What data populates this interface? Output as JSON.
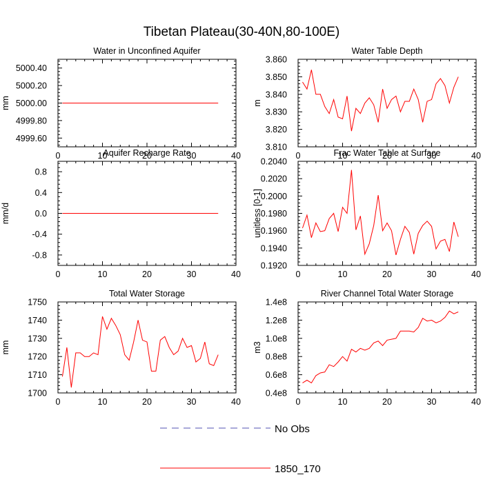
{
  "figure": {
    "title": "Tibetan Plateau(30-40N,80-100E)",
    "line_color": "#ff0000",
    "obs_color": "#5050b0"
  },
  "legend": {
    "position": "bottom-center",
    "entries": [
      {
        "label": "No Obs",
        "style": "dashed",
        "color": "#5050b0"
      },
      {
        "label": "1850_170",
        "style": "solid",
        "color": "#ff0000"
      }
    ]
  },
  "chart_data": [
    {
      "type": "line",
      "title": "Water in Unconfined Aquifer",
      "ylabel": "mm",
      "xlim": [
        0,
        40
      ],
      "xticks": [
        0,
        10,
        20,
        30,
        40
      ],
      "xtick_labels": [
        "0",
        "10",
        "20",
        "30",
        "40"
      ],
      "ylim": [
        4999.5,
        5000.5
      ],
      "yticks": [
        4999.6,
        4999.8,
        5000.0,
        5000.2,
        5000.4
      ],
      "ytick_labels": [
        "4999.60",
        "4999.80",
        "5000.00",
        "5000.20",
        "5000.40"
      ],
      "x": [
        1,
        2,
        3,
        4,
        5,
        6,
        7,
        8,
        9,
        10,
        11,
        12,
        13,
        14,
        15,
        16,
        17,
        18,
        19,
        20,
        21,
        22,
        23,
        24,
        25,
        26,
        27,
        28,
        29,
        30,
        31,
        32,
        33,
        34,
        35,
        36
      ],
      "y": [
        5000,
        5000,
        5000,
        5000,
        5000,
        5000,
        5000,
        5000,
        5000,
        5000,
        5000,
        5000,
        5000,
        5000,
        5000,
        5000,
        5000,
        5000,
        5000,
        5000,
        5000,
        5000,
        5000,
        5000,
        5000,
        5000,
        5000,
        5000,
        5000,
        5000,
        5000,
        5000,
        5000,
        5000,
        5000,
        5000
      ]
    },
    {
      "type": "line",
      "title": "Water Table Depth",
      "ylabel": "m",
      "xlim": [
        0,
        40
      ],
      "xticks": [
        0,
        10,
        20,
        30,
        40
      ],
      "xtick_labels": [
        "0",
        "10",
        "20",
        "30",
        "40"
      ],
      "ylim": [
        3.81,
        3.86
      ],
      "yticks": [
        3.81,
        3.82,
        3.83,
        3.84,
        3.85,
        3.86
      ],
      "ytick_labels": [
        "3.810",
        "3.820",
        "3.830",
        "3.840",
        "3.850",
        "3.860"
      ],
      "x": [
        1,
        2,
        3,
        4,
        5,
        6,
        7,
        8,
        9,
        10,
        11,
        12,
        13,
        14,
        15,
        16,
        17,
        18,
        19,
        20,
        21,
        22,
        23,
        24,
        25,
        26,
        27,
        28,
        29,
        30,
        31,
        32,
        33,
        34,
        35,
        36
      ],
      "y": [
        3.847,
        3.843,
        3.854,
        3.84,
        3.84,
        3.833,
        3.829,
        3.837,
        3.827,
        3.826,
        3.839,
        3.819,
        3.832,
        3.829,
        3.835,
        3.838,
        3.834,
        3.824,
        3.843,
        3.832,
        3.837,
        3.839,
        3.83,
        3.836,
        3.836,
        3.843,
        3.837,
        3.824,
        3.836,
        3.837,
        3.846,
        3.849,
        3.845,
        3.835,
        3.844,
        3.85
      ]
    },
    {
      "type": "line",
      "title": "Aquifer Recharge Rate",
      "ylabel": "mm/d",
      "xlim": [
        0,
        40
      ],
      "xticks": [
        0,
        10,
        20,
        30,
        40
      ],
      "xtick_labels": [
        "0",
        "10",
        "20",
        "30",
        "40"
      ],
      "ylim": [
        -1.0,
        1.0
      ],
      "yticks": [
        -0.8,
        -0.4,
        0.0,
        0.4,
        0.8
      ],
      "ytick_labels": [
        "-0.8",
        "-0.4",
        "0.0",
        "0.4",
        "0.8"
      ],
      "x": [
        1,
        2,
        3,
        4,
        5,
        6,
        7,
        8,
        9,
        10,
        11,
        12,
        13,
        14,
        15,
        16,
        17,
        18,
        19,
        20,
        21,
        22,
        23,
        24,
        25,
        26,
        27,
        28,
        29,
        30,
        31,
        32,
        33,
        34,
        35,
        36
      ],
      "y": [
        0,
        0,
        0,
        0,
        0,
        0,
        0,
        0,
        0,
        0,
        0,
        0,
        0,
        0,
        0,
        0,
        0,
        0,
        0,
        0,
        0,
        0,
        0,
        0,
        0,
        0,
        0,
        0,
        0,
        0,
        0,
        0,
        0,
        0,
        0,
        0
      ]
    },
    {
      "type": "line",
      "title": "Frac Water Table at Surface",
      "ylabel": "unitless [0-1]",
      "xlim": [
        0,
        40
      ],
      "xticks": [
        0,
        10,
        20,
        30,
        40
      ],
      "xtick_labels": [
        "0",
        "10",
        "20",
        "30",
        "40"
      ],
      "ylim": [
        0.192,
        0.204
      ],
      "yticks": [
        0.192,
        0.194,
        0.196,
        0.198,
        0.2,
        0.202,
        0.204
      ],
      "ytick_labels": [
        "0.1920",
        "0.1940",
        "0.1960",
        "0.1980",
        "0.2000",
        "0.2020",
        "0.2040"
      ],
      "x": [
        1,
        2,
        3,
        4,
        5,
        6,
        7,
        8,
        9,
        10,
        11,
        12,
        13,
        14,
        15,
        16,
        17,
        18,
        19,
        20,
        21,
        22,
        23,
        24,
        25,
        26,
        27,
        28,
        29,
        30,
        31,
        32,
        33,
        34,
        35,
        36
      ],
      "y": [
        0.1963,
        0.1978,
        0.1952,
        0.1969,
        0.1959,
        0.196,
        0.1974,
        0.198,
        0.1959,
        0.1987,
        0.198,
        0.203,
        0.1961,
        0.1977,
        0.1933,
        0.1945,
        0.1966,
        0.2001,
        0.196,
        0.1969,
        0.196,
        0.1932,
        0.195,
        0.1965,
        0.1958,
        0.1933,
        0.1957,
        0.1966,
        0.1971,
        0.1965,
        0.1939,
        0.1948,
        0.195,
        0.1936,
        0.197,
        0.1953
      ]
    },
    {
      "type": "line",
      "title": "Total Water Storage",
      "ylabel": "mm",
      "xlim": [
        0,
        40
      ],
      "xticks": [
        0,
        10,
        20,
        30,
        40
      ],
      "xtick_labels": [
        "0",
        "10",
        "20",
        "30",
        "40"
      ],
      "ylim": [
        1700,
        1750
      ],
      "yticks": [
        1700,
        1710,
        1720,
        1730,
        1740,
        1750
      ],
      "ytick_labels": [
        "1700",
        "1710",
        "1720",
        "1730",
        "1740",
        "1750"
      ],
      "x": [
        1,
        2,
        3,
        4,
        5,
        6,
        7,
        8,
        9,
        10,
        11,
        12,
        13,
        14,
        15,
        16,
        17,
        18,
        19,
        20,
        21,
        22,
        23,
        24,
        25,
        26,
        27,
        28,
        29,
        30,
        31,
        32,
        33,
        34,
        35,
        36
      ],
      "y": [
        1709,
        1725,
        1703,
        1722,
        1722,
        1720,
        1720,
        1722,
        1721,
        1742,
        1735,
        1741,
        1737,
        1732,
        1721,
        1718,
        1728,
        1740,
        1729,
        1728,
        1712,
        1712,
        1729,
        1731,
        1725,
        1721,
        1723,
        1730,
        1725,
        1726,
        1717,
        1719,
        1728,
        1716,
        1715,
        1721
      ]
    },
    {
      "type": "line",
      "title": "River Channel Total Water Storage",
      "ylabel": "m3",
      "xlim": [
        0,
        40
      ],
      "xticks": [
        0,
        10,
        20,
        30,
        40
      ],
      "xtick_labels": [
        "0",
        "10",
        "20",
        "30",
        "40"
      ],
      "ylim": [
        40000000,
        140000000
      ],
      "yticks": [
        40000000,
        60000000,
        80000000,
        100000000,
        120000000,
        140000000
      ],
      "ytick_labels": [
        "0.4e8",
        "0.6e8",
        "0.8e8",
        "1.0e8",
        "1.2e8",
        "1.4e8"
      ],
      "x": [
        1,
        2,
        3,
        4,
        5,
        6,
        7,
        8,
        9,
        10,
        11,
        12,
        13,
        14,
        15,
        16,
        17,
        18,
        19,
        20,
        21,
        22,
        23,
        24,
        25,
        26,
        27,
        28,
        29,
        30,
        31,
        32,
        33,
        34,
        35,
        36
      ],
      "y": [
        51000000,
        54000000,
        51000000,
        59000000,
        62000000,
        63000000,
        71000000,
        69000000,
        74000000,
        80000000,
        75000000,
        88000000,
        85000000,
        89000000,
        87000000,
        89000000,
        95000000,
        97000000,
        92000000,
        98000000,
        99000000,
        100000000,
        108000000,
        108000000,
        108000000,
        107000000,
        112000000,
        122000000,
        119000000,
        120000000,
        117000000,
        119000000,
        123000000,
        130000000,
        127000000,
        129000000
      ]
    }
  ]
}
